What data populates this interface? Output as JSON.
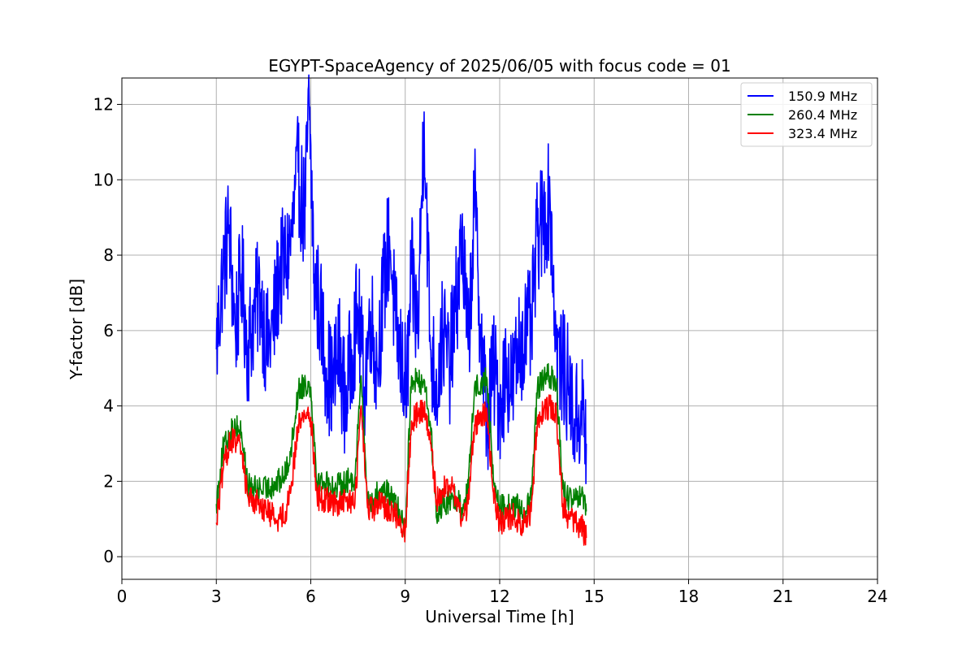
{
  "chart_data": {
    "type": "line",
    "title": "EGYPT-SpaceAgency of 2025/06/05 with focus code = 01",
    "xlabel": "Universal Time [h]",
    "ylabel": "Y-factor [dB]",
    "xlim": [
      0,
      24
    ],
    "ylim": [
      -0.6,
      12.7
    ],
    "xticks": [
      "0",
      "3",
      "6",
      "9",
      "12",
      "15",
      "18",
      "21",
      "24"
    ],
    "yticks": [
      "0",
      "2",
      "4",
      "6",
      "8",
      "10",
      "12"
    ],
    "grid": true,
    "legend_position": "top-right",
    "series": [
      {
        "name": "150.9 MHz",
        "color": "#0000ff",
        "x": [
          3.0,
          3.2,
          3.4,
          3.6,
          3.8,
          4.0,
          4.2,
          4.4,
          4.6,
          4.8,
          5.0,
          5.2,
          5.4,
          5.6,
          5.8,
          5.95,
          6.1,
          6.3,
          6.5,
          6.7,
          6.9,
          7.1,
          7.3,
          7.5,
          7.7,
          7.9,
          8.1,
          8.3,
          8.5,
          8.7,
          8.9,
          9.05,
          9.2,
          9.4,
          9.6,
          9.8,
          10.0,
          10.2,
          10.4,
          10.6,
          10.8,
          11.0,
          11.2,
          11.4,
          11.6,
          11.8,
          12.0,
          12.2,
          12.4,
          12.6,
          12.8,
          13.0,
          13.2,
          13.4,
          13.6,
          13.8,
          14.0,
          14.2,
          14.4,
          14.6,
          14.75
        ],
        "y": [
          5.5,
          7.5,
          8.8,
          6.0,
          7.5,
          5.5,
          6.5,
          7.0,
          5.5,
          6.0,
          7.5,
          7.8,
          8.5,
          10.2,
          9.0,
          12.1,
          7.5,
          6.5,
          5.0,
          4.5,
          5.5,
          4.0,
          5.5,
          6.5,
          4.5,
          6.5,
          5.0,
          7.0,
          8.5,
          6.0,
          5.0,
          4.5,
          7.5,
          6.0,
          11.8,
          5.5,
          4.5,
          6.0,
          5.0,
          6.5,
          8.5,
          5.5,
          9.5,
          6.0,
          3.5,
          5.0,
          4.0,
          5.0,
          4.5,
          5.5,
          6.0,
          6.0,
          8.5,
          9.0,
          9.5,
          5.5,
          5.0,
          4.5,
          3.5,
          4.0,
          3.0
        ]
      },
      {
        "name": "260.4 MHz",
        "color": "#008000",
        "x": [
          3.0,
          3.2,
          3.4,
          3.6,
          3.8,
          4.0,
          4.2,
          4.4,
          4.6,
          4.8,
          5.0,
          5.2,
          5.4,
          5.6,
          5.8,
          6.0,
          6.2,
          6.4,
          6.6,
          6.8,
          7.0,
          7.2,
          7.4,
          7.6,
          7.8,
          8.0,
          8.2,
          8.4,
          8.6,
          8.8,
          9.0,
          9.2,
          9.4,
          9.6,
          9.8,
          10.0,
          10.2,
          10.4,
          10.6,
          10.8,
          11.0,
          11.2,
          11.4,
          11.6,
          11.8,
          12.0,
          12.2,
          12.4,
          12.6,
          12.8,
          13.0,
          13.2,
          13.4,
          13.6,
          13.8,
          14.0,
          14.2,
          14.4,
          14.6,
          14.75
        ],
        "y": [
          1.4,
          2.8,
          3.2,
          3.5,
          3.3,
          1.9,
          1.8,
          1.8,
          1.8,
          1.9,
          2.0,
          2.2,
          3.0,
          4.4,
          4.6,
          4.5,
          2.0,
          2.0,
          1.9,
          1.8,
          2.0,
          2.0,
          2.1,
          4.8,
          1.5,
          1.5,
          1.8,
          1.7,
          1.5,
          1.2,
          0.8,
          4.8,
          4.6,
          4.7,
          3.5,
          1.0,
          1.5,
          1.4,
          1.6,
          1.3,
          1.8,
          4.5,
          4.6,
          4.7,
          2.0,
          1.3,
          1.3,
          1.4,
          1.3,
          1.2,
          1.5,
          4.5,
          4.7,
          4.8,
          4.6,
          1.8,
          1.5,
          1.5,
          1.6,
          1.2
        ]
      },
      {
        "name": "323.4 MHz",
        "color": "#ff0000",
        "x": [
          3.0,
          3.2,
          3.4,
          3.6,
          3.8,
          4.0,
          4.2,
          4.4,
          4.6,
          4.8,
          5.0,
          5.2,
          5.4,
          5.6,
          5.8,
          6.0,
          6.2,
          6.4,
          6.6,
          6.8,
          7.0,
          7.2,
          7.4,
          7.6,
          7.8,
          8.0,
          8.2,
          8.4,
          8.6,
          8.8,
          9.0,
          9.2,
          9.4,
          9.6,
          9.8,
          10.0,
          10.2,
          10.4,
          10.6,
          10.8,
          11.0,
          11.2,
          11.4,
          11.6,
          11.8,
          12.0,
          12.2,
          12.4,
          12.6,
          12.8,
          13.0,
          13.2,
          13.4,
          13.6,
          13.8,
          14.0,
          14.2,
          14.4,
          14.6,
          14.75
        ],
        "y": [
          0.9,
          2.2,
          3.0,
          3.1,
          2.8,
          1.6,
          1.5,
          1.4,
          1.2,
          1.1,
          1.0,
          1.2,
          2.0,
          3.5,
          3.8,
          3.7,
          1.6,
          1.5,
          1.5,
          1.4,
          1.4,
          1.5,
          1.4,
          4.0,
          1.3,
          1.2,
          1.4,
          1.3,
          1.2,
          1.0,
          0.7,
          3.6,
          3.8,
          3.9,
          3.0,
          1.5,
          1.8,
          1.9,
          1.6,
          1.0,
          1.4,
          3.5,
          3.7,
          3.8,
          1.7,
          0.9,
          1.0,
          1.1,
          0.9,
          0.9,
          1.2,
          3.7,
          3.9,
          4.0,
          3.8,
          1.4,
          1.0,
          0.9,
          0.8,
          0.5
        ]
      }
    ]
  }
}
